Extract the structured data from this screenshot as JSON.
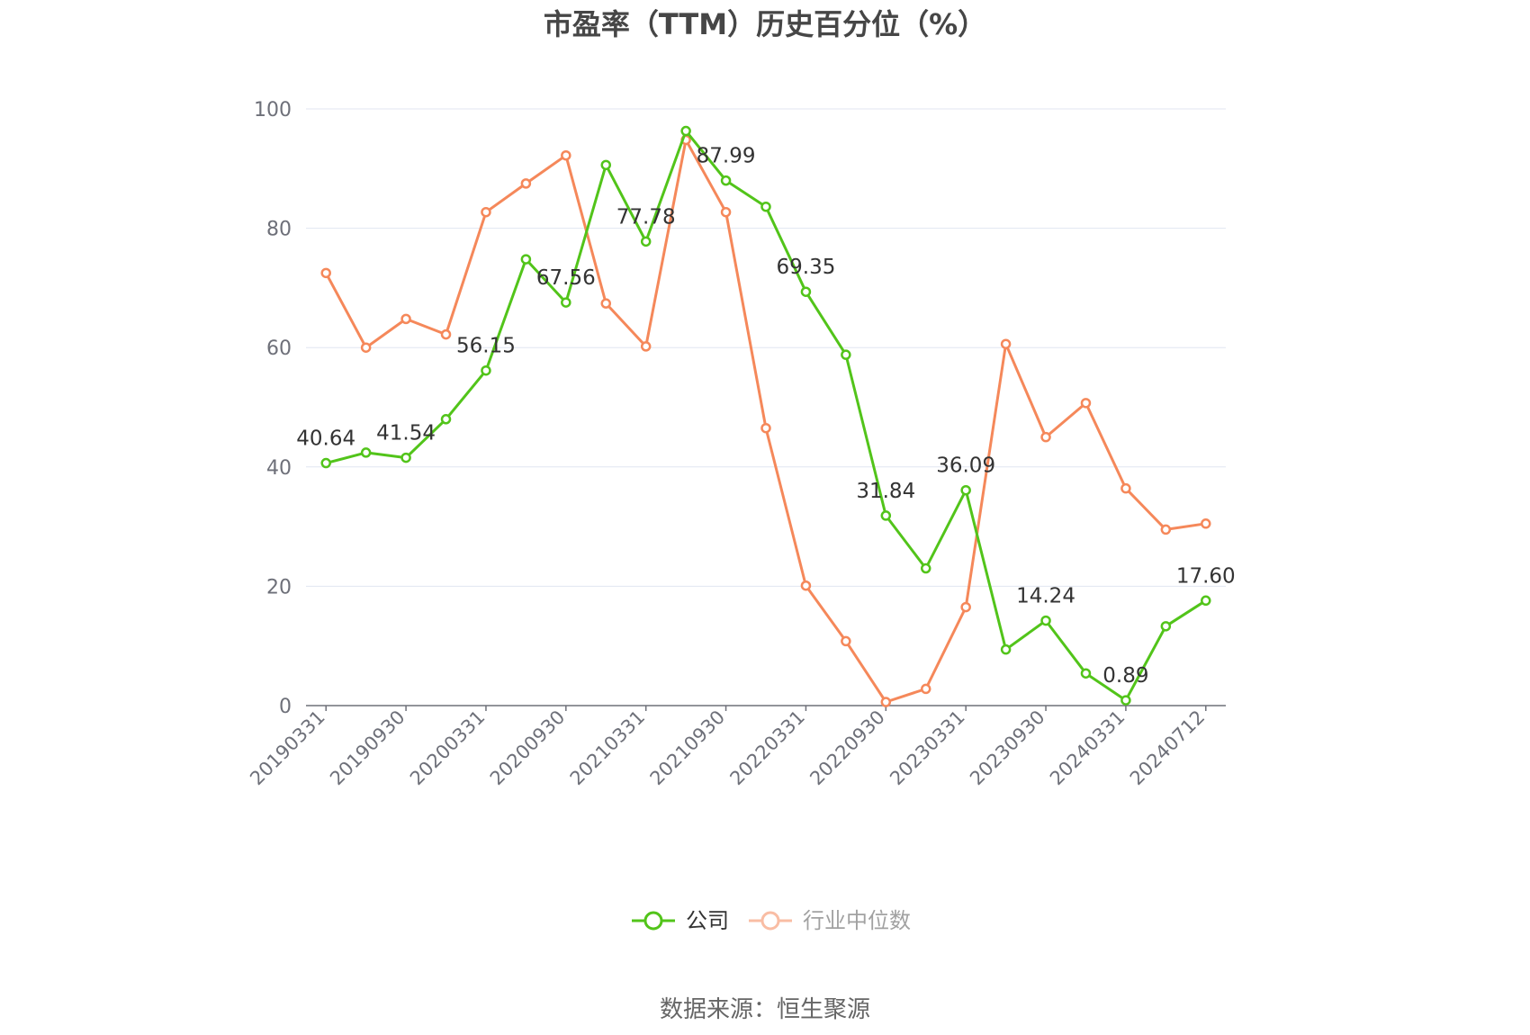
{
  "chart_data": {
    "type": "line",
    "title": "市盈率（TTM）历史百分位（%）",
    "source": "数据来源：恒生聚源",
    "ylim": [
      0,
      100
    ],
    "y_ticks": [
      "0",
      "20",
      "40",
      "60",
      "80",
      "100"
    ],
    "x_tick_labels": [
      "20190331",
      "20190930",
      "20200331",
      "20200930",
      "20210331",
      "20210930",
      "20220331",
      "20220930",
      "20230331",
      "20230930",
      "20240331",
      "20240712"
    ],
    "x": [
      "20190331",
      "20190630",
      "20190930",
      "20191231",
      "20200331",
      "20200630",
      "20200930",
      "20201231",
      "20210331",
      "20210630",
      "20210930",
      "20211231",
      "20220331",
      "20220630",
      "20220930",
      "20221231",
      "20230331",
      "20230630",
      "20230930",
      "20231231",
      "20240331",
      "20240630",
      "20240712"
    ],
    "grid": true,
    "legend_position": "bottom",
    "series": [
      {
        "name": "公司",
        "color": "#52c41a",
        "values": [
          40.64,
          42.4,
          41.54,
          48.0,
          56.15,
          74.8,
          67.56,
          90.6,
          77.78,
          96.3,
          87.99,
          83.6,
          69.35,
          58.8,
          31.84,
          23.0,
          36.09,
          9.4,
          14.24,
          5.4,
          0.89,
          13.3,
          17.6
        ],
        "labels": [
          "40.64",
          "",
          "41.54",
          "",
          "56.15",
          "",
          "67.56",
          "",
          "77.78",
          "",
          "87.99",
          "",
          "69.35",
          "",
          "31.84",
          "",
          "36.09",
          "",
          "14.24",
          "",
          "0.89",
          "",
          "17.60"
        ]
      },
      {
        "name": "行业中位数",
        "color": "#f5885a",
        "values": [
          72.5,
          60.0,
          64.8,
          62.2,
          82.7,
          87.5,
          92.2,
          67.4,
          60.2,
          94.8,
          82.7,
          46.5,
          20.1,
          10.8,
          0.6,
          2.8,
          16.5,
          60.6,
          45.0,
          50.7,
          36.4,
          29.5,
          30.5
        ]
      }
    ]
  }
}
